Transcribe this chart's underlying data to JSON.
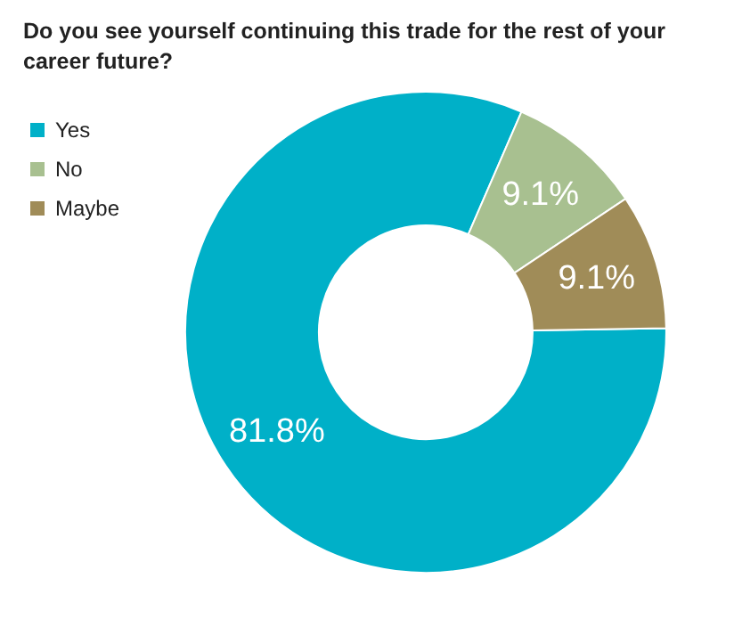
{
  "chart_data": {
    "type": "donut",
    "title": "Do you see yourself continuing this trade for the rest of your career future?",
    "categories": [
      "Yes",
      "No",
      "Maybe"
    ],
    "values": [
      81.8,
      9.1,
      9.1
    ],
    "colors": [
      "#00b0c8",
      "#a8c090",
      "#a08c58"
    ],
    "value_labels": [
      "81.8%",
      "9.1%",
      "9.1%"
    ],
    "legend": "top left"
  }
}
